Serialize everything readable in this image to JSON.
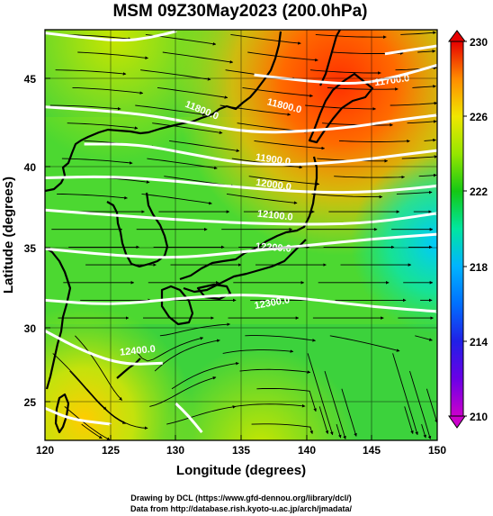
{
  "title": "MSM 09Z30May2023 (200.0hPa)",
  "x_axis": {
    "label": "Longitude (degrees)",
    "ticks": [
      "120",
      "125",
      "130",
      "135",
      "140",
      "145",
      "150"
    ]
  },
  "y_axis": {
    "label": "Latitude  (degrees)",
    "ticks": [
      "25",
      "30",
      "35",
      "40",
      "45"
    ]
  },
  "colorbar": {
    "ticks": [
      "210",
      "214",
      "218",
      "222",
      "226",
      "230"
    ],
    "min": 210,
    "max": 230,
    "colors": [
      "#cc00cc",
      "#2020e6",
      "#00b4ff",
      "#00e6a0",
      "#14c814",
      "#96e600",
      "#f0e600",
      "#ffa000",
      "#ff5000",
      "#e60000"
    ]
  },
  "contour_labels": [
    "11700.0",
    "11800.0",
    "11800.0",
    "11900.0",
    "12000.0",
    "12100.0",
    "12200.0",
    "12300.0",
    "12400.0"
  ],
  "credits": {
    "line1": "Drawing by DCL (https://www.gfd-dennou.org/library/dcl/)",
    "line2": "Data from http://database.rish.kyoto-u.ac.jp/arch/jmadata/"
  },
  "chart_data": {
    "type": "heatmap",
    "title": "MSM 09Z30May2023 (200.0hPa)",
    "xlabel": "Longitude (degrees)",
    "ylabel": "Latitude  (degrees)",
    "xlim": [
      120,
      150
    ],
    "ylim": [
      22.5,
      48
    ],
    "colorbar_range": [
      210,
      230
    ],
    "colorbar_ticks": [
      210,
      214,
      218,
      222,
      226,
      230
    ],
    "contours": [
      {
        "value": 11700,
        "points": [
          [
            146,
            46.5
          ],
          [
            150,
            47
          ]
        ]
      },
      {
        "value": 11800,
        "points": [
          [
            120,
            47.8
          ],
          [
            123,
            47.5
          ],
          [
            126,
            47.3
          ],
          [
            128,
            47.5
          ],
          [
            130,
            47.9
          ]
        ]
      },
      {
        "value": 11800,
        "points": [
          [
            136,
            45.2
          ],
          [
            140,
            44.8
          ],
          [
            144,
            44.6
          ],
          [
            147,
            45.1
          ],
          [
            150,
            45.8
          ]
        ]
      },
      {
        "value": 11900,
        "points": [
          [
            120,
            43.2
          ],
          [
            124,
            43
          ],
          [
            128,
            42.7
          ],
          [
            132,
            42.1
          ],
          [
            136,
            41.6
          ],
          [
            140,
            41.7
          ],
          [
            144,
            42
          ],
          [
            147,
            42.4
          ],
          [
            150,
            42.7
          ]
        ]
      },
      {
        "value": 12000,
        "points": [
          [
            123,
            40.9
          ],
          [
            127,
            40.9
          ],
          [
            131,
            40.3
          ],
          [
            135,
            39.7
          ],
          [
            139,
            39.6
          ],
          [
            143,
            39.8
          ],
          [
            147,
            40.2
          ],
          [
            150,
            40.5
          ]
        ]
      },
      {
        "value": 12100,
        "points": [
          [
            120,
            38.8
          ],
          [
            125,
            38.9
          ],
          [
            130,
            38.6
          ],
          [
            135,
            38.2
          ],
          [
            140,
            37.9
          ],
          [
            145,
            37.9
          ],
          [
            150,
            38.3
          ]
        ]
      },
      {
        "value": 12200,
        "points": [
          [
            120,
            36.8
          ],
          [
            125,
            36.5
          ],
          [
            130,
            36.2
          ],
          [
            135,
            36
          ],
          [
            140,
            35.9
          ],
          [
            145,
            36
          ],
          [
            150,
            36.6
          ]
        ]
      },
      {
        "value": 12300,
        "points": [
          [
            120,
            34.4
          ],
          [
            125,
            34
          ],
          [
            130,
            33.8
          ],
          [
            135,
            34.2
          ],
          [
            140,
            34.6
          ],
          [
            145,
            35
          ],
          [
            150,
            35.3
          ]
        ]
      },
      {
        "value": 12400,
        "points": [
          [
            120,
            31.2
          ],
          [
            125,
            30.9
          ],
          [
            130,
            31.3
          ],
          [
            135,
            31.6
          ],
          [
            140,
            31.3
          ],
          [
            145,
            30.8
          ],
          [
            150,
            30.5
          ]
        ]
      },
      {
        "value": 12400,
        "points": [
          [
            120,
            29.3
          ],
          [
            123,
            28
          ],
          [
            126,
            27.2
          ],
          [
            129,
            27.3
          ]
        ]
      },
      {
        "value": 12400,
        "points": [
          [
            120,
            24.5
          ],
          [
            122,
            23.8
          ],
          [
            125,
            23.5
          ]
        ]
      },
      {
        "value": 12400,
        "points": [
          [
            130,
            24.8
          ],
          [
            131,
            24
          ],
          [
            132,
            23
          ]
        ]
      }
    ],
    "temperature_field_notes": "Warmer (orange/red) toward northern Japan and the Sea of Japan, green-yellow over central latitudes, cooler (cyan) near 148-150E 34-38N."
  }
}
